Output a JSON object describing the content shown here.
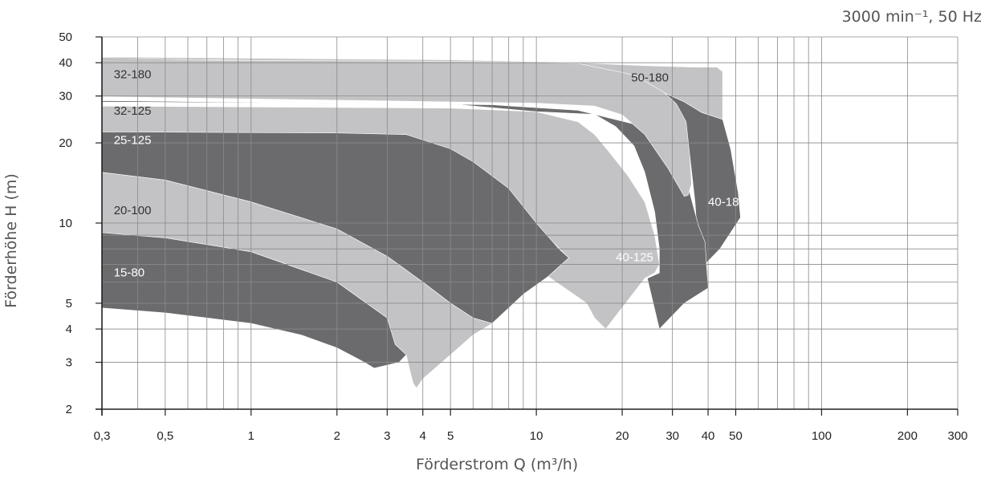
{
  "chart_data": {
    "type": "area",
    "subtitle": "3000 min⁻¹, 50 Hz",
    "xlabel": "Förderstrom Q (m³/h)",
    "ylabel": "Förderhöhe H (m)",
    "xscale": "log",
    "yscale": "log",
    "xlim": [
      0.3,
      300
    ],
    "ylim": [
      2,
      50
    ],
    "grid": true,
    "x_ticks": [
      {
        "v": 0.3,
        "label": "0,3"
      },
      {
        "v": 0.5,
        "label": "0,5"
      },
      {
        "v": 1,
        "label": "1"
      },
      {
        "v": 2,
        "label": "2"
      },
      {
        "v": 3,
        "label": "3"
      },
      {
        "v": 4,
        "label": "4"
      },
      {
        "v": 5,
        "label": "5"
      },
      {
        "v": 10,
        "label": "10"
      },
      {
        "v": 20,
        "label": "20"
      },
      {
        "v": 30,
        "label": "30"
      },
      {
        "v": 40,
        "label": "40"
      },
      {
        "v": 50,
        "label": "50"
      },
      {
        "v": 100,
        "label": "100"
      },
      {
        "v": 200,
        "label": "200"
      },
      {
        "v": 300,
        "label": "300"
      }
    ],
    "y_ticks": [
      {
        "v": 2,
        "label": "2"
      },
      {
        "v": 3,
        "label": "3"
      },
      {
        "v": 4,
        "label": "4"
      },
      {
        "v": 5,
        "label": "5"
      },
      {
        "v": 10,
        "label": "10"
      },
      {
        "v": 20,
        "label": "20"
      },
      {
        "v": 30,
        "label": "30"
      },
      {
        "v": 40,
        "label": "40"
      },
      {
        "v": 50,
        "label": "50"
      }
    ],
    "x_minor_grid": [
      0.4,
      0.6,
      0.7,
      0.8,
      0.9,
      6,
      7,
      8,
      9,
      60,
      70,
      80,
      90
    ],
    "y_minor_grid": [
      6,
      7,
      8,
      9
    ],
    "series": [
      {
        "name": "50-180",
        "color": "#c3c3c5",
        "label_color": "#333333",
        "label_at": [
          21.5,
          34
        ],
        "points": [
          [
            0.3,
            42
          ],
          [
            5,
            41
          ],
          [
            14,
            40
          ],
          [
            24,
            39
          ],
          [
            36,
            38.5
          ],
          [
            43,
            38.5
          ],
          [
            45,
            37
          ],
          [
            45,
            24.5
          ],
          [
            38,
            26
          ],
          [
            33,
            28.5
          ],
          [
            26,
            32
          ],
          [
            18,
            35.5
          ],
          [
            10,
            38.5
          ],
          [
            5,
            40
          ],
          [
            0.3,
            41.5
          ]
        ]
      },
      {
        "name": "40-180",
        "color": "#6b6b6e",
        "label_color": "#ffffff",
        "label_at": [
          40,
          11.6
        ],
        "points": [
          [
            0.3,
            41.5
          ],
          [
            5,
            40
          ],
          [
            10,
            38.5
          ],
          [
            18,
            35.5
          ],
          [
            26,
            32
          ],
          [
            33,
            28.5
          ],
          [
            38,
            26
          ],
          [
            45,
            24.5
          ],
          [
            48,
            19
          ],
          [
            51,
            13
          ],
          [
            52,
            10.5
          ],
          [
            44,
            8
          ],
          [
            39,
            7
          ],
          [
            37,
            7.8
          ],
          [
            36,
            12
          ],
          [
            34.5,
            18
          ],
          [
            32,
            23
          ],
          [
            26,
            27.5
          ],
          [
            18,
            29
          ],
          [
            10,
            30.5
          ],
          [
            5,
            30
          ],
          [
            0.3,
            30
          ]
        ]
      },
      {
        "name": "40-125",
        "color": "#6b6b6e",
        "label_color": "#ffffff",
        "label_at": [
          19,
          7.2
        ],
        "points": [
          [
            0.3,
            28.5
          ],
          [
            5,
            28
          ],
          [
            10,
            26.2
          ],
          [
            16,
            25.6
          ],
          [
            19,
            23
          ],
          [
            22,
            19.5
          ],
          [
            24,
            15.5
          ],
          [
            26,
            11
          ],
          [
            27,
            8
          ],
          [
            27,
            6.5
          ],
          [
            24.5,
            6.2
          ],
          [
            27,
            4
          ],
          [
            33,
            5
          ],
          [
            40,
            5.7
          ],
          [
            39,
            8.5
          ],
          [
            37,
            9.8
          ],
          [
            34.5,
            13
          ],
          [
            33,
            16
          ],
          [
            30,
            19
          ],
          [
            24,
            23
          ],
          [
            14,
            26.5
          ],
          [
            7,
            27.8
          ],
          [
            0.3,
            28.8
          ]
        ]
      },
      {
        "name": "32-180",
        "color": "#c3c3c5",
        "label_color": "#333333",
        "label_at": [
          0.33,
          35
        ],
        "points": [
          [
            0.3,
            41
          ],
          [
            5,
            40.5
          ],
          [
            14,
            39.8
          ],
          [
            22,
            36
          ],
          [
            28,
            31
          ],
          [
            31,
            28
          ],
          [
            33.5,
            24
          ],
          [
            34.5,
            18
          ],
          [
            35,
            14
          ],
          [
            34,
            12.7
          ],
          [
            33,
            12.6
          ],
          [
            29,
            16
          ],
          [
            24,
            21.5
          ],
          [
            20,
            25.5
          ],
          [
            16,
            27.5
          ],
          [
            10,
            28.2
          ],
          [
            5,
            28.5
          ],
          [
            0.3,
            29.8
          ]
        ]
      },
      {
        "name": "32-125",
        "color": "#c3c3c5",
        "label_color": "#333333",
        "label_at": [
          0.33,
          25.5
        ],
        "points": [
          [
            0.3,
            27.5
          ],
          [
            5,
            27
          ],
          [
            10,
            26.2
          ],
          [
            14,
            24
          ],
          [
            16,
            21.5
          ],
          [
            18,
            18.5
          ],
          [
            21,
            15
          ],
          [
            24,
            12
          ],
          [
            26,
            9
          ],
          [
            27,
            7
          ],
          [
            26,
            6.5
          ],
          [
            24,
            6.2
          ],
          [
            17.5,
            4
          ],
          [
            16,
            4.4
          ],
          [
            15,
            5
          ],
          [
            11,
            6.3
          ],
          [
            13,
            7.4
          ],
          [
            10,
            9.8
          ],
          [
            8,
            13
          ],
          [
            6,
            16.5
          ],
          [
            4,
            20
          ],
          [
            3.5,
            21.5
          ],
          [
            0.3,
            22
          ]
        ]
      },
      {
        "name": "25-125",
        "color": "#6b6b6e",
        "label_color": "#ffffff",
        "label_at": [
          0.33,
          19.8
        ],
        "points": [
          [
            0.3,
            22
          ],
          [
            2,
            21.8
          ],
          [
            3.5,
            21.5
          ],
          [
            5,
            19
          ],
          [
            6,
            17
          ],
          [
            8,
            13.5
          ],
          [
            10,
            10
          ],
          [
            12,
            8
          ],
          [
            13,
            7.4
          ],
          [
            11,
            6.3
          ],
          [
            9,
            5.4
          ],
          [
            7,
            4.2
          ],
          [
            6,
            4.4
          ],
          [
            5,
            5
          ],
          [
            4,
            6
          ],
          [
            3,
            7.5
          ],
          [
            2,
            9.5
          ],
          [
            1,
            12
          ],
          [
            0.5,
            14.5
          ],
          [
            0.3,
            15.5
          ]
        ]
      },
      {
        "name": "20-100",
        "color": "#c3c3c5",
        "label_color": "#333333",
        "label_at": [
          0.33,
          10.8
        ],
        "points": [
          [
            0.3,
            15.5
          ],
          [
            0.5,
            14.5
          ],
          [
            1,
            12
          ],
          [
            2,
            9.5
          ],
          [
            3,
            7.5
          ],
          [
            4,
            6
          ],
          [
            5,
            5
          ],
          [
            6,
            4.4
          ],
          [
            7,
            4.2
          ],
          [
            6,
            3.8
          ],
          [
            5,
            3.2
          ],
          [
            4,
            2.6
          ],
          [
            3.8,
            2.4
          ],
          [
            3.7,
            2.5
          ],
          [
            3.6,
            2.8
          ],
          [
            3.5,
            3.2
          ],
          [
            3.2,
            3.5
          ],
          [
            3,
            4.4
          ],
          [
            2,
            6
          ],
          [
            1,
            7.8
          ],
          [
            0.5,
            8.8
          ],
          [
            0.3,
            9.2
          ]
        ]
      },
      {
        "name": "15-80",
        "color": "#6b6b6e",
        "label_color": "#ffffff",
        "label_at": [
          0.33,
          6.3
        ],
        "points": [
          [
            0.3,
            9.2
          ],
          [
            0.5,
            8.8
          ],
          [
            1,
            7.8
          ],
          [
            2,
            6
          ],
          [
            3,
            4.4
          ],
          [
            3.2,
            3.5
          ],
          [
            3.5,
            3.2
          ],
          [
            3.3,
            3
          ],
          [
            2.7,
            2.85
          ],
          [
            2.5,
            3
          ],
          [
            2,
            3.4
          ],
          [
            1.5,
            3.8
          ],
          [
            1,
            4.2
          ],
          [
            0.5,
            4.6
          ],
          [
            0.3,
            4.8
          ]
        ]
      }
    ]
  }
}
